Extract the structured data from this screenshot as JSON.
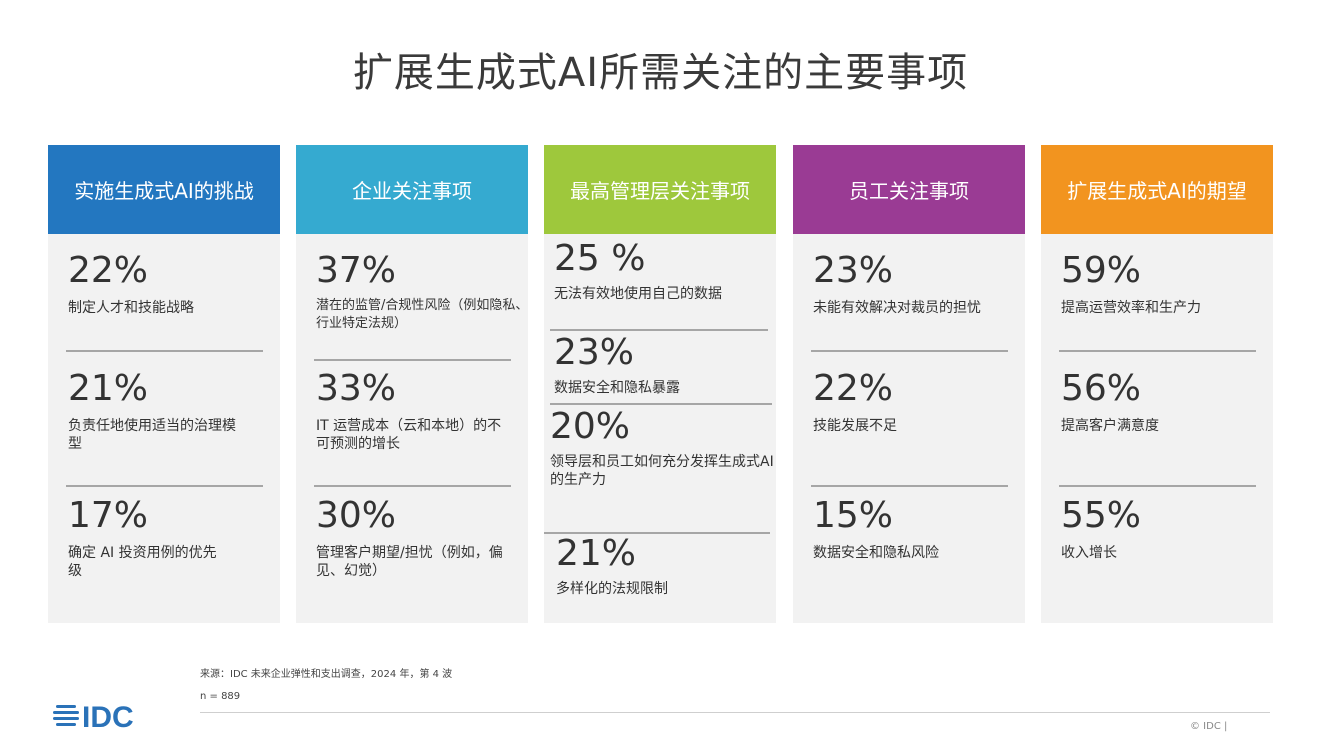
{
  "title": "扩展生成式AI所需关注的主要事项",
  "columns": [
    {
      "header": "实施生成式AI的挑战",
      "color": "#2377c0",
      "items": [
        {
          "pct": "22%",
          "desc": "制定人才和技能战略"
        },
        {
          "pct": "21%",
          "desc": "负责任地使用适当的治理模型"
        },
        {
          "pct": "17%",
          "desc": "确定 AI 投资用例的优先级"
        }
      ]
    },
    {
      "header": "企业关注事项",
      "color": "#35aad0",
      "items": [
        {
          "pct": "37%",
          "desc": "潜在的监管/合规性风险（例如隐私、行业特定法规）"
        },
        {
          "pct": "33%",
          "desc": "IT 运营成本（云和本地）的不可预测的增长"
        },
        {
          "pct": "30%",
          "desc": "管理客户期望/担忧（例如，偏见、幻觉）"
        }
      ]
    },
    {
      "header": "最高管理层关注事项",
      "color": "#9ec83c",
      "items": [
        {
          "pct": "25 %",
          "desc": "无法有效地使用自己的数据"
        },
        {
          "pct": "23%",
          "desc": "数据安全和隐私暴露"
        },
        {
          "pct": "20%",
          "desc": "领导层和员工如何充分发挥生成式AI的生产力"
        },
        {
          "pct": "21%",
          "desc": "多样化的法规限制"
        }
      ]
    },
    {
      "header": "员工关注事项",
      "color": "#9a3b94",
      "items": [
        {
          "pct": "23%",
          "desc": "未能有效解决对裁员的担忧"
        },
        {
          "pct": "22%",
          "desc": "技能发展不足"
        },
        {
          "pct": "15%",
          "desc": "数据安全和隐私风险"
        }
      ]
    },
    {
      "header": "扩展生成式AI的期望",
      "color": "#f2941f",
      "items": [
        {
          "pct": "59%",
          "desc": "提高运营效率和生产力"
        },
        {
          "pct": "56%",
          "desc": "提高客户满意度"
        },
        {
          "pct": "55%",
          "desc": "收入增长"
        }
      ]
    }
  ],
  "footer": {
    "source": "来源：IDC 未来企业弹性和支出调查，2024 年，第 4 波",
    "sample": "n = 889",
    "copyright": "© IDC |"
  },
  "logo": {
    "text": "IDC",
    "color": "#2a72b8",
    "icon": "idc-globe-logo"
  }
}
